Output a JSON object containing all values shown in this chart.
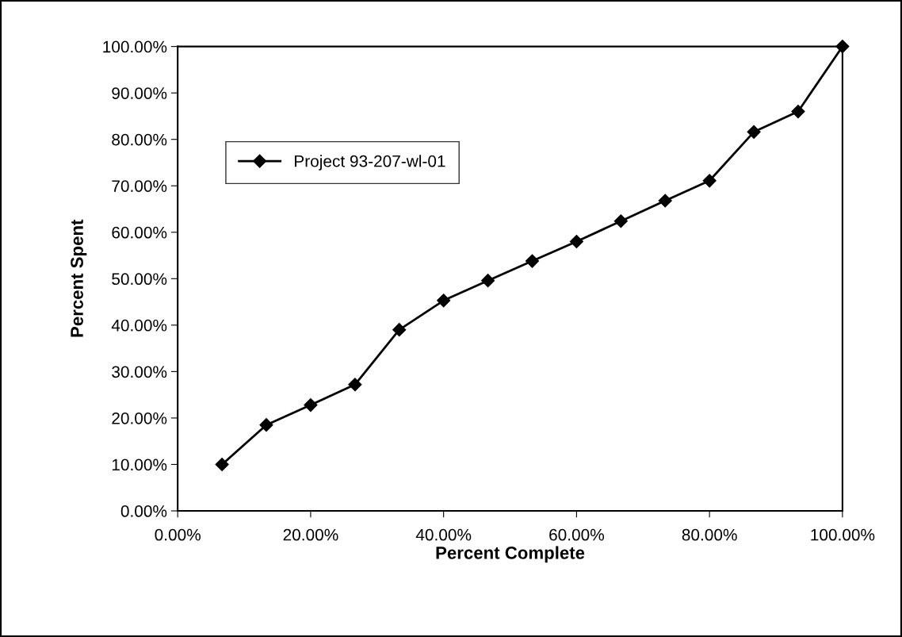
{
  "chart_data": {
    "type": "line",
    "xlabel": "Percent Complete",
    "ylabel": "Percent Spent",
    "x": [
      6.67,
      13.33,
      20.0,
      26.67,
      33.33,
      40.0,
      46.67,
      53.33,
      60.0,
      66.67,
      73.33,
      80.0,
      86.67,
      93.33,
      100.0
    ],
    "series": [
      {
        "name": "Project 93-207-wl-01",
        "color": "#000000",
        "values": [
          10.0,
          18.5,
          22.8,
          27.2,
          39.0,
          45.3,
          49.6,
          53.8,
          58.0,
          62.4,
          66.8,
          71.1,
          81.6,
          86.0,
          100.0
        ]
      }
    ],
    "xlim": [
      0,
      100
    ],
    "xticks": [
      {
        "value": 0,
        "label": "0.00%"
      },
      {
        "value": 20,
        "label": "20.00%"
      },
      {
        "value": 40,
        "label": "40.00%"
      },
      {
        "value": 60,
        "label": "60.00%"
      },
      {
        "value": 80,
        "label": "80.00%"
      },
      {
        "value": 100,
        "label": "100.00%"
      }
    ],
    "ylim": [
      0,
      100
    ],
    "yticks": [
      {
        "value": 0,
        "label": "0.00%"
      },
      {
        "value": 10,
        "label": "10.00%"
      },
      {
        "value": 20,
        "label": "20.00%"
      },
      {
        "value": 30,
        "label": "30.00%"
      },
      {
        "value": 40,
        "label": "40.00%"
      },
      {
        "value": 50,
        "label": "50.00%"
      },
      {
        "value": 60,
        "label": "60.00%"
      },
      {
        "value": 70,
        "label": "70.00%"
      },
      {
        "value": 80,
        "label": "80.00%"
      },
      {
        "value": 90,
        "label": "90.00%"
      },
      {
        "value": 100,
        "label": "100.00%"
      }
    ],
    "grid": false,
    "legend": "left",
    "marker": "diamond",
    "line_style": "solid"
  }
}
